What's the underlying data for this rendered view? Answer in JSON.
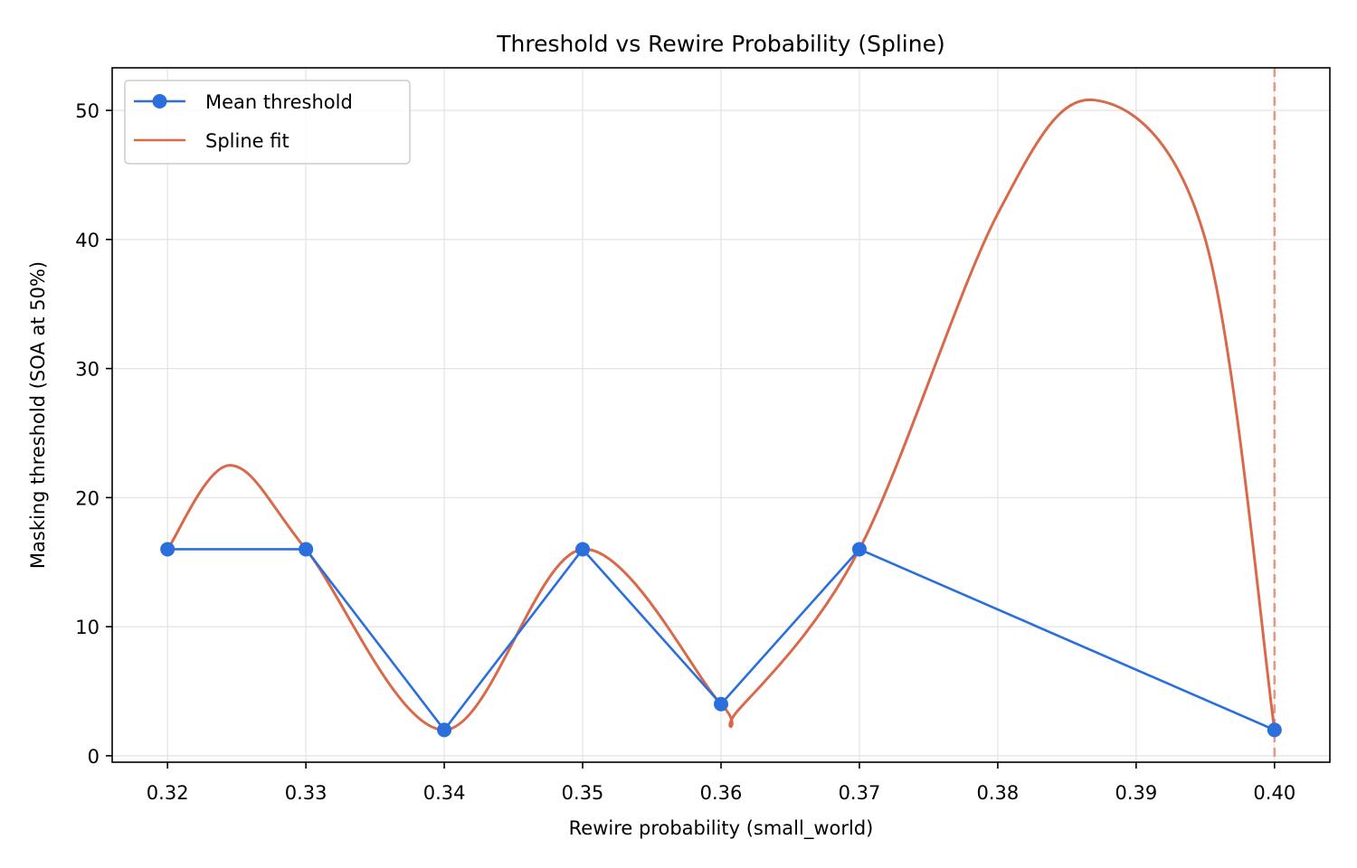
{
  "chart_data": {
    "type": "line",
    "title": "Threshold vs Rewire Probability (Spline)",
    "xlabel": "Rewire probability (small_world)",
    "ylabel": "Masking threshold (SOA at 50%)",
    "xlim": [
      0.316,
      0.404
    ],
    "ylim": [
      -0.5,
      53.3
    ],
    "xticks": [
      0.32,
      0.33,
      0.34,
      0.35,
      0.36,
      0.37,
      0.38,
      0.39,
      0.4
    ],
    "xtick_labels": [
      "0.32",
      "0.33",
      "0.34",
      "0.35",
      "0.36",
      "0.37",
      "0.38",
      "0.39",
      "0.40"
    ],
    "yticks": [
      0,
      10,
      20,
      30,
      40,
      50
    ],
    "ytick_labels": [
      "0",
      "10",
      "20",
      "30",
      "40",
      "50"
    ],
    "grid": true,
    "legend_position": "top-left",
    "series": [
      {
        "name": "Mean threshold",
        "style": "line-with-markers",
        "color": "#2a6fdb",
        "x": [
          0.32,
          0.33,
          0.34,
          0.35,
          0.36,
          0.37,
          0.4
        ],
        "y": [
          16,
          16,
          2,
          16,
          4,
          16,
          2
        ]
      },
      {
        "name": "Spline fit",
        "style": "smooth-line",
        "color": "#d9694a",
        "x": [
          0.32,
          0.3245,
          0.33,
          0.34,
          0.35,
          0.36,
          0.3613,
          0.37,
          0.38,
          0.387,
          0.395,
          0.4
        ],
        "y": [
          16,
          22.5,
          16,
          2,
          16,
          4,
          3.6,
          16,
          42,
          50.8,
          40,
          2
        ]
      }
    ],
    "vertical_reference_line": {
      "x": 0.4,
      "color": "#e49a85",
      "style": "dashed"
    }
  }
}
